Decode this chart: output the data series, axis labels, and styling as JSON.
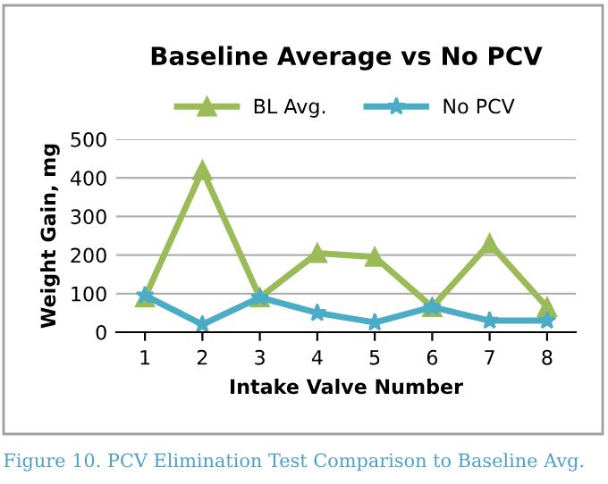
{
  "chart_data": {
    "type": "line",
    "title": "Baseline Average vs No PCV",
    "xlabel": "Intake Valve Number",
    "ylabel": "Weight Gain, mg",
    "categories": [
      "1",
      "2",
      "3",
      "4",
      "5",
      "6",
      "7",
      "8"
    ],
    "series": [
      {
        "name": "BL Avg.",
        "color": "#9bbb59",
        "marker": "triangle",
        "values": [
          90,
          420,
          90,
          205,
          195,
          65,
          230,
          65
        ]
      },
      {
        "name": "No PCV",
        "color": "#4bacc6",
        "marker": "star",
        "values": [
          95,
          20,
          90,
          50,
          25,
          65,
          30,
          30
        ]
      }
    ],
    "ylim": [
      0,
      500
    ],
    "yticks": [
      0,
      100,
      200,
      300,
      400,
      500
    ],
    "grid": "y",
    "legend": "top",
    "line_style": "solid",
    "annotations": [
      "Figure 10. PCV Elimination Test Comparison to Baseline Avg."
    ]
  }
}
